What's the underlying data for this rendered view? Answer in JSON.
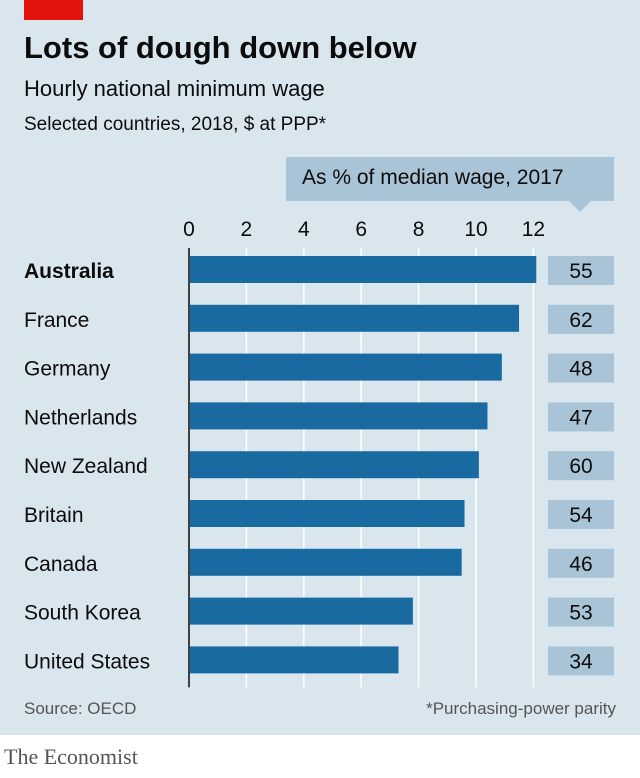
{
  "header": {
    "title": "Lots of dough down below",
    "subtitle": "Hourly national minimum wage",
    "subsubtitle": "Selected countries, 2018, $ at PPP*"
  },
  "callout": {
    "label": "As % of median wage, 2017"
  },
  "footer": {
    "source": "Source: OECD",
    "footnote": "*Purchasing-power parity",
    "brand": "The Economist"
  },
  "colors": {
    "bar": "#1a6aa2",
    "badge": "#a8c4d6",
    "background": "#d9e6ee",
    "accent": "#e3120b"
  },
  "chart_data": {
    "type": "bar",
    "orientation": "horizontal",
    "title": "Lots of dough down below",
    "subtitle": "Hourly national minimum wage",
    "categories": [
      "Australia",
      "France",
      "Germany",
      "Netherlands",
      "New Zealand",
      "Britain",
      "Canada",
      "South Korea",
      "United States"
    ],
    "highlight": "Australia",
    "series": [
      {
        "values": [
          12.1,
          11.5,
          10.9,
          10.4,
          10.1,
          9.6,
          9.5,
          7.8,
          7.3
        ]
      },
      {
        "name": "As % of median wage, 2017",
        "values": [
          55,
          62,
          48,
          47,
          60,
          54,
          46,
          53,
          34
        ]
      }
    ],
    "xlim": [
      0,
      12
    ],
    "xticks": [
      0,
      2,
      4,
      6,
      8,
      10,
      12
    ],
    "grid": true
  }
}
